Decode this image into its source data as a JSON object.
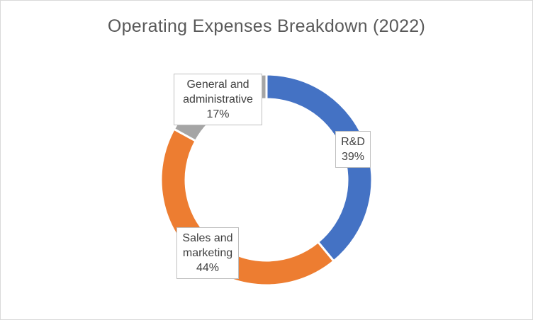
{
  "chart_data": {
    "type": "pie",
    "donut": true,
    "title": "Operating Expenses Breakdown (2022)",
    "categories": [
      "R&D",
      "Sales and marketing",
      "General and administrative"
    ],
    "values": [
      39,
      44,
      17
    ],
    "value_labels": [
      "39%",
      "44%",
      "17%"
    ],
    "label_lines": [
      [
        "R&D"
      ],
      [
        "Sales and",
        "marketing"
      ],
      [
        "General and",
        "administrative"
      ]
    ],
    "colors": [
      "#4472c4",
      "#ed7d31",
      "#a5a5a5"
    ],
    "legend": "none"
  }
}
